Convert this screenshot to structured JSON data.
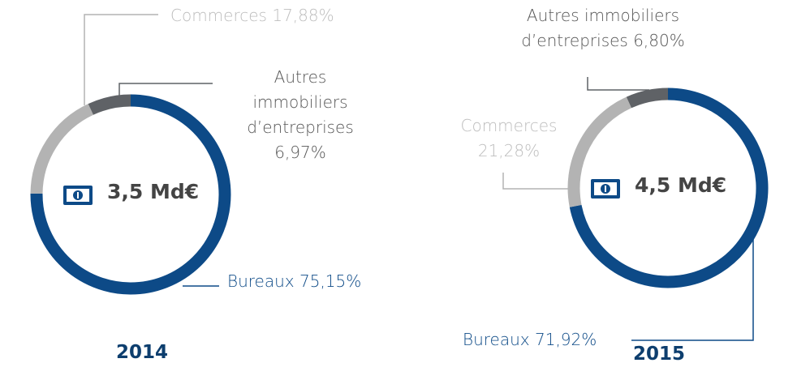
{
  "chart_data": [
    {
      "type": "pie",
      "title": "2014",
      "center_label": "3,5 Md€",
      "categories": [
        "Bureaux",
        "Commerces",
        "Autres immobiliers d’entreprises"
      ],
      "values": [
        75.15,
        17.88,
        6.97
      ],
      "value_labels": [
        "75,15%",
        "17,88%",
        "6,97%"
      ],
      "colors": [
        "#0d4a87",
        "#b3b3b3",
        "#5f6266"
      ]
    },
    {
      "type": "pie",
      "title": "2015",
      "center_label": "4,5 Md€",
      "categories": [
        "Bureaux",
        "Commerces",
        "Autres immobiliers d’entreprises"
      ],
      "values": [
        71.92,
        21.28,
        6.8
      ],
      "value_labels": [
        "71,92%",
        "21,28%",
        "6,80%"
      ],
      "colors": [
        "#0d4a87",
        "#b3b3b3",
        "#5f6266"
      ]
    }
  ]
}
